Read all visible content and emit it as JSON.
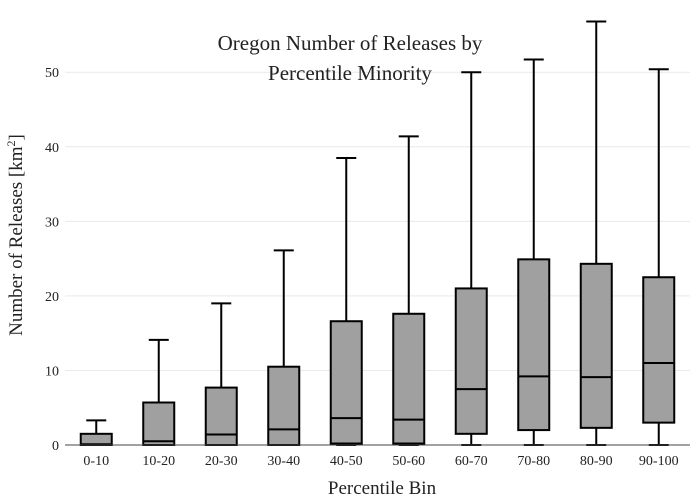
{
  "chart_data": {
    "type": "box",
    "title_lines": [
      "Oregon Number of Releases by",
      "Percentile Minority"
    ],
    "xlabel": "Percentile Bin",
    "ylabel_prefix": "Number of Releases  [km",
    "ylabel_sup": "2",
    "ylabel_suffix": "]",
    "ylim": [
      0,
      57
    ],
    "yticks": [
      0,
      10,
      20,
      30,
      40,
      50
    ],
    "grid": true,
    "box_fill": "#a0a0a0",
    "box_stroke": "#000000",
    "categories": [
      "0-10",
      "10-20",
      "20-30",
      "30-40",
      "40-50",
      "50-60",
      "60-70",
      "70-80",
      "80-90",
      "90-100"
    ],
    "boxes": [
      {
        "min": 0,
        "q1": 0,
        "median": 0.1,
        "q3": 1.5,
        "max": 3.3
      },
      {
        "min": 0,
        "q1": 0,
        "median": 0.5,
        "q3": 5.7,
        "max": 14.1
      },
      {
        "min": 0,
        "q1": 0,
        "median": 1.4,
        "q3": 7.7,
        "max": 19.0
      },
      {
        "min": 0,
        "q1": 0,
        "median": 2.1,
        "q3": 10.5,
        "max": 26.1
      },
      {
        "min": 0,
        "q1": 0.2,
        "median": 3.6,
        "q3": 16.6,
        "max": 38.5
      },
      {
        "min": 0,
        "q1": 0.2,
        "median": 3.4,
        "q3": 17.6,
        "max": 41.4
      },
      {
        "min": 0,
        "q1": 1.5,
        "median": 7.5,
        "q3": 21.0,
        "max": 50.0
      },
      {
        "min": 0,
        "q1": 2.0,
        "median": 9.2,
        "q3": 24.9,
        "max": 51.7
      },
      {
        "min": 0,
        "q1": 2.3,
        "median": 9.1,
        "q3": 24.3,
        "max": 56.8
      },
      {
        "min": 0,
        "q1": 3.0,
        "median": 11.0,
        "q3": 22.5,
        "max": 50.4
      }
    ]
  }
}
